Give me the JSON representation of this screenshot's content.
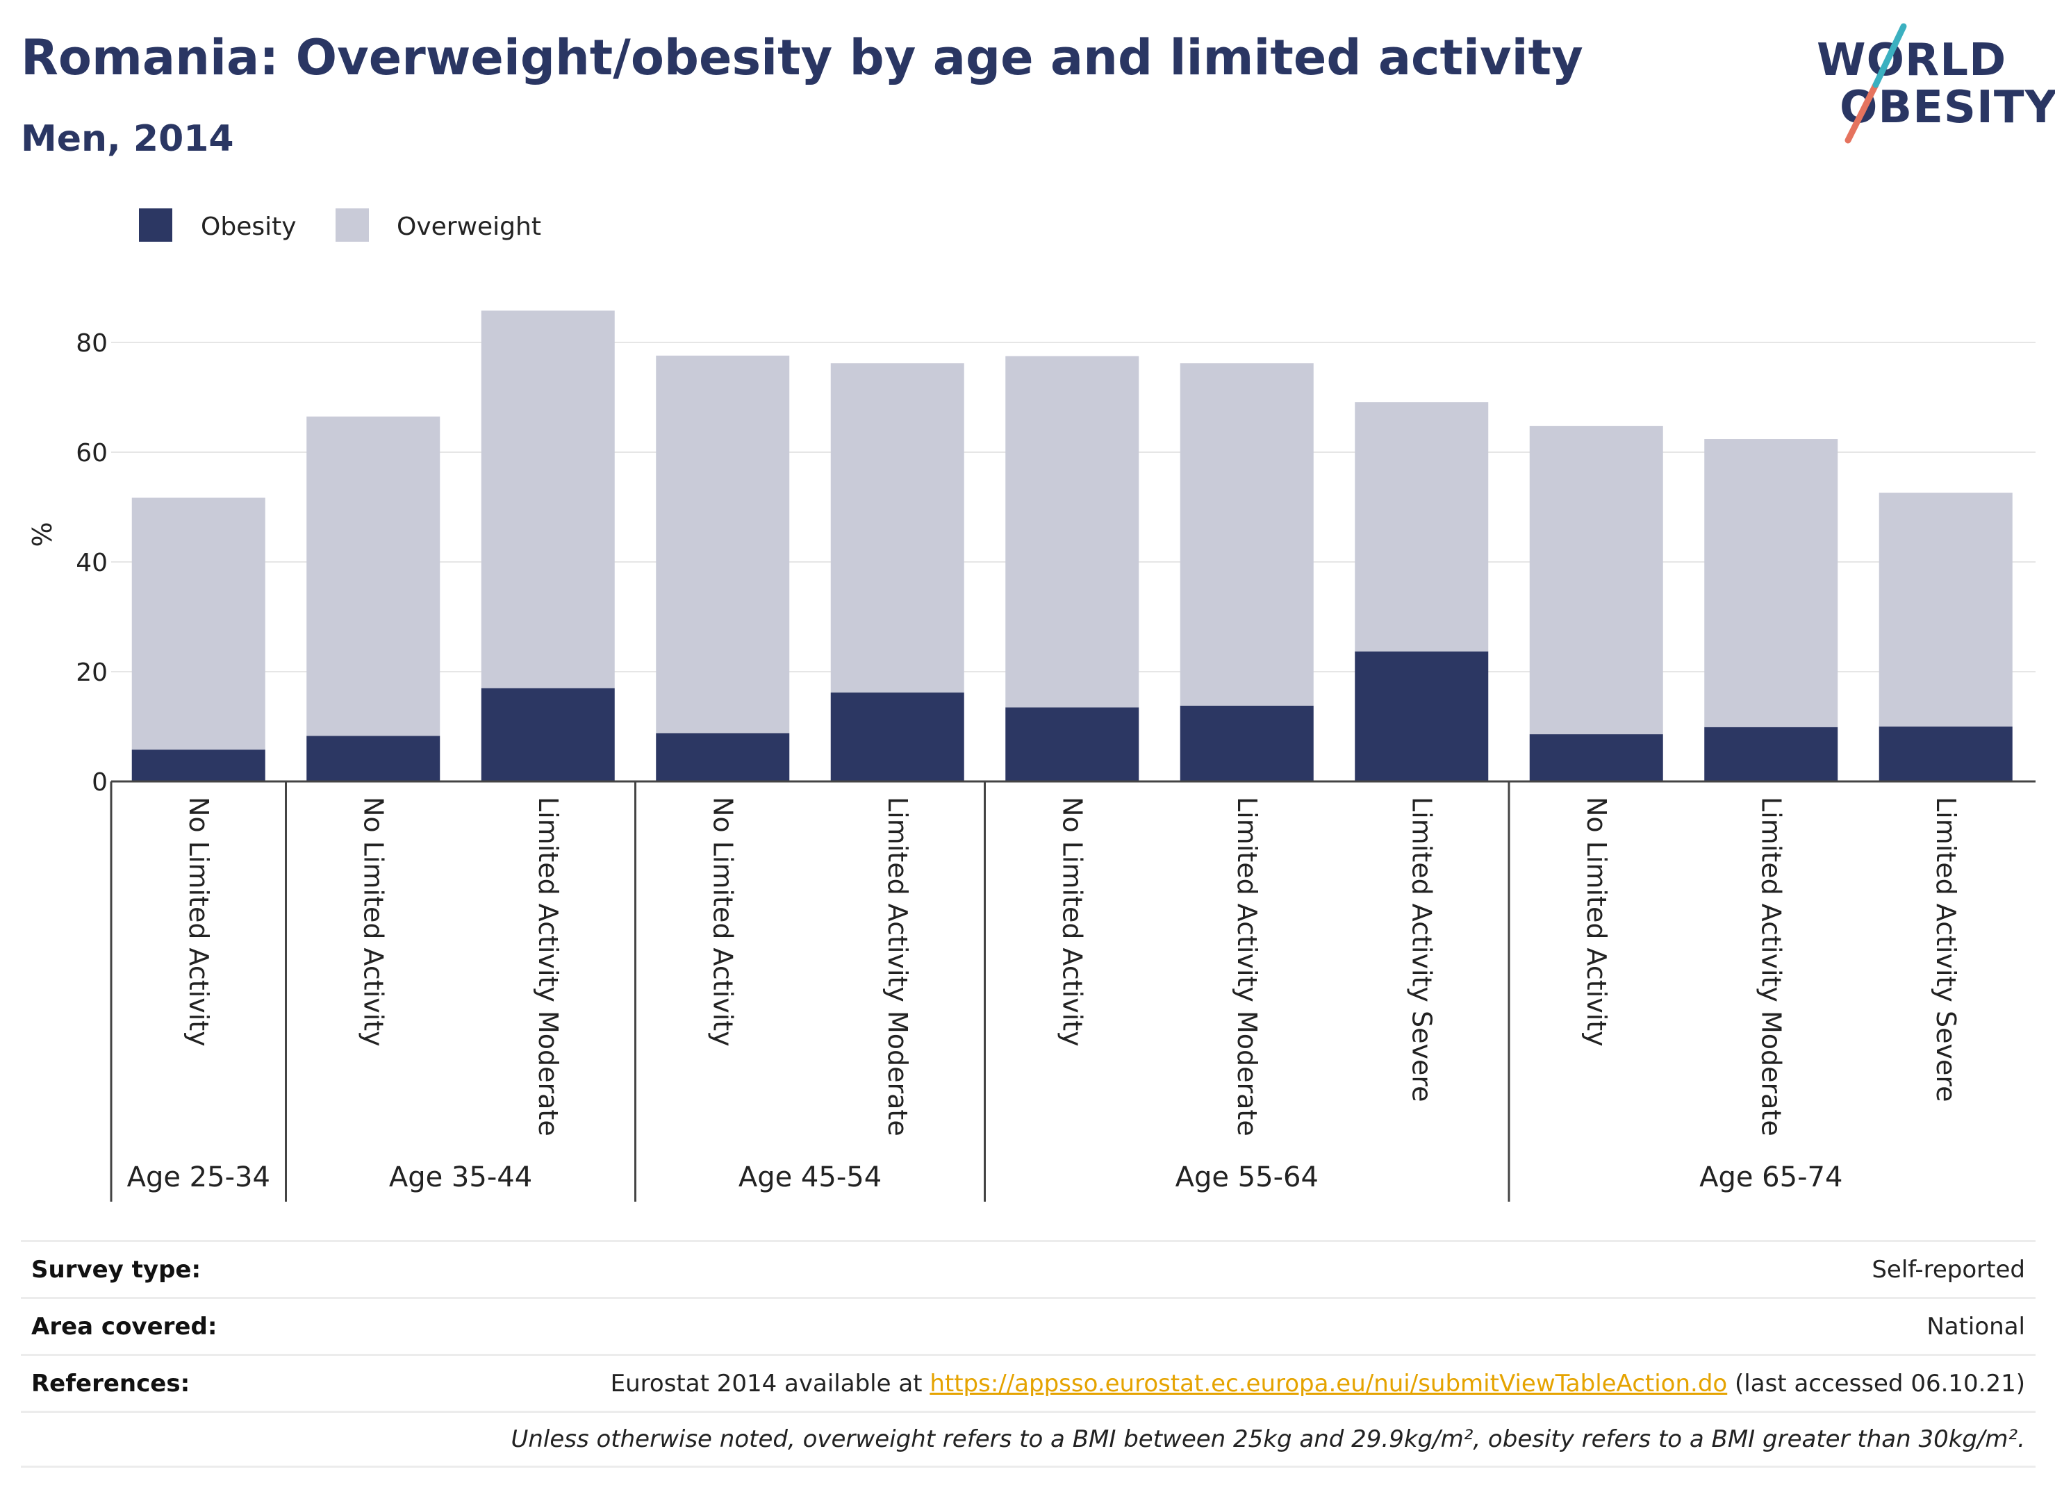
{
  "header": {
    "title": "Romania: Overweight/obesity by age and limited activity",
    "subtitle": "Men, 2014"
  },
  "logo": {
    "line1": "WORLD",
    "line2": "OBESITY"
  },
  "chart_data": {
    "type": "bar",
    "stacked": true,
    "ylabel": "%",
    "ylim": [
      0,
      90
    ],
    "yticks": [
      0,
      20,
      40,
      60,
      80
    ],
    "grid": true,
    "legend_placement": "top-left",
    "categories": [
      "No Limited Activity",
      "No Limited Activity",
      "Limited Activity Moderate",
      "No Limited Activity",
      "Limited Activity Moderate",
      "No Limited Activity",
      "Limited Activity Moderate",
      "Limited Activity Severe",
      "No Limited Activity",
      "Limited Activity Moderate",
      "Limited Activity Severe"
    ],
    "groups": [
      {
        "label": "Age 25-34",
        "count": 1
      },
      {
        "label": "Age 35-44",
        "count": 2
      },
      {
        "label": "Age 45-54",
        "count": 2
      },
      {
        "label": "Age 55-64",
        "count": 3
      },
      {
        "label": "Age 65-74",
        "count": 3
      }
    ],
    "series": [
      {
        "name": "Obesity",
        "color": "#2c3763",
        "values": [
          5.8,
          8.3,
          17.0,
          8.8,
          16.2,
          13.5,
          13.8,
          23.7,
          8.6,
          9.9,
          10.0
        ]
      },
      {
        "name": "Overweight",
        "color": "#c9cbd8",
        "values": [
          45.9,
          58.2,
          68.8,
          68.8,
          60.0,
          64.0,
          62.4,
          45.4,
          56.2,
          52.5,
          42.6
        ]
      }
    ]
  },
  "footer": {
    "survey_label": "Survey type:",
    "survey_value": "Self-reported",
    "area_label": "Area covered:",
    "area_value": "National",
    "ref_label": "References:",
    "ref_prefix": "Eurostat 2014 available at ",
    "ref_link": "https://appsso.eurostat.ec.europa.eu/nui/submitViewTableAction.do",
    "ref_suffix": " (last accessed 06.10.21)",
    "note": "Unless otherwise noted, overweight refers to a BMI between 25kg and 29.9kg/m², obesity refers to a BMI greater than 30kg/m²."
  }
}
